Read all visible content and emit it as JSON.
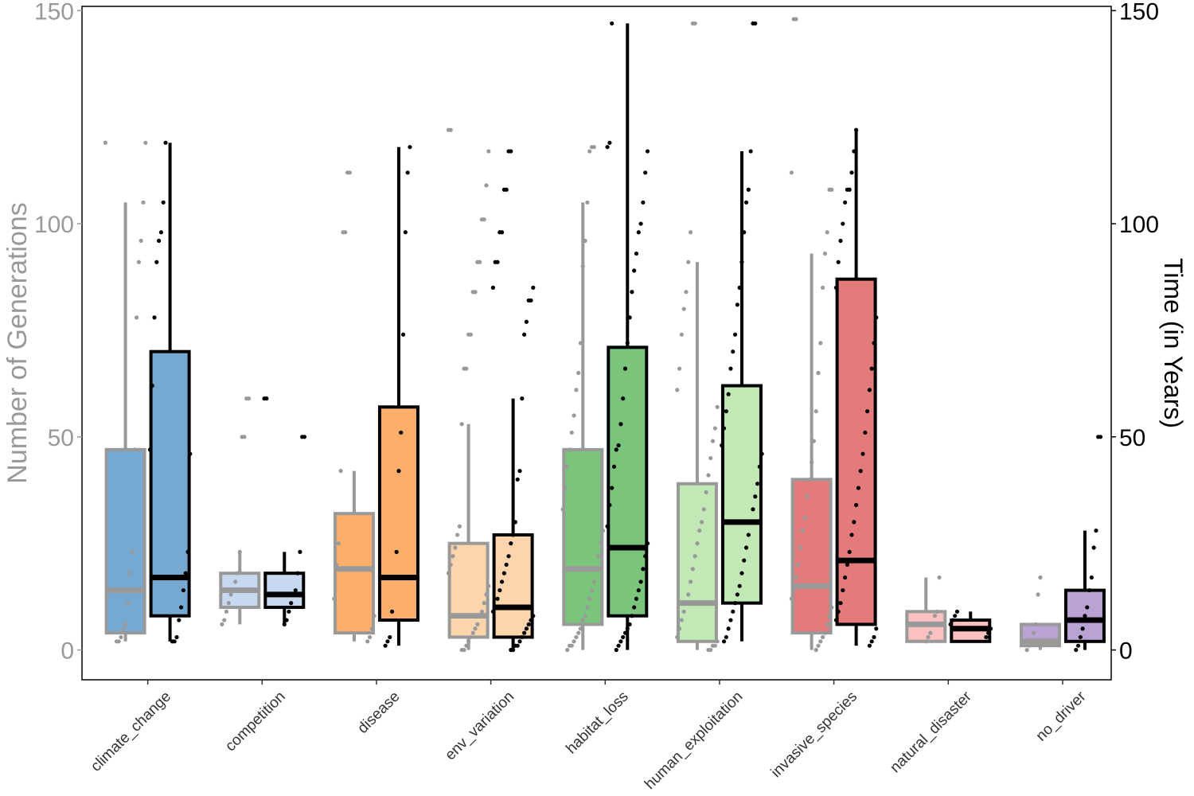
{
  "chart_data": {
    "type": "box",
    "title": "",
    "xlabel": "",
    "ylabel_left": "Number of Generations",
    "ylabel_right": "Time (in Years)",
    "ylim": [
      -7,
      151
    ],
    "yticks": [
      "0",
      "50",
      "100",
      "150"
    ],
    "ytick_values": [
      0,
      50,
      100,
      150
    ],
    "grid": false,
    "colors": {
      "generations_outline": "#999999",
      "years_outline": "#000000",
      "generations_points": "#999999",
      "years_points": "#000000"
    },
    "categories": [
      "climate_change",
      "competition",
      "disease",
      "env_variation",
      "habitat_loss",
      "human_exploitation",
      "invasive_species",
      "natural_disaster",
      "no_driver"
    ],
    "fills": [
      "#76a9d1",
      "#c6d9f0",
      "#fdae6b",
      "#fdd5ad",
      "#7bc47b",
      "#c2e8b6",
      "#e37b7b",
      "#fbc0c0",
      "#b9a2d4"
    ],
    "series": [
      {
        "key": "generations",
        "axis": "left",
        "boxes": [
          {
            "whislo": 2,
            "q1": 4,
            "med": 14,
            "q3": 47,
            "whishi": 105
          },
          {
            "whislo": 6,
            "q1": 10,
            "med": 14,
            "q3": 18,
            "whishi": 23
          },
          {
            "whislo": 2,
            "q1": 4,
            "med": 19,
            "q3": 32,
            "whishi": 42
          },
          {
            "whislo": 0,
            "q1": 3,
            "med": 8,
            "q3": 25,
            "whishi": 53
          },
          {
            "whislo": 0,
            "q1": 6,
            "med": 19,
            "q3": 47,
            "whishi": 105
          },
          {
            "whislo": 0,
            "q1": 2,
            "med": 11,
            "q3": 39,
            "whishi": 91
          },
          {
            "whislo": 0,
            "q1": 4,
            "med": 15,
            "q3": 40,
            "whishi": 93
          },
          {
            "whislo": 2,
            "q1": 2,
            "med": 6,
            "q3": 9,
            "whishi": 17
          },
          {
            "whislo": 0,
            "q1": 1,
            "med": 2,
            "q3": 6,
            "whishi": 6
          }
        ],
        "points": [
          [
            119,
            119,
            105,
            96,
            91,
            78,
            47,
            23,
            18,
            11,
            6,
            5,
            3,
            2,
            2
          ],
          [
            59,
            59,
            50,
            50,
            23,
            18,
            16,
            14,
            13,
            11,
            9,
            7,
            6
          ],
          [
            112,
            112,
            98,
            98,
            42,
            25,
            20,
            12,
            8,
            5,
            3,
            2
          ],
          [
            122,
            122,
            117,
            109,
            101,
            101,
            91,
            91,
            84,
            84,
            74,
            74,
            66,
            66,
            53,
            29,
            27,
            24,
            22,
            20,
            18,
            15,
            13,
            11,
            9,
            8,
            6,
            5,
            4,
            3,
            2,
            1,
            0,
            0
          ],
          [
            118,
            118,
            117,
            105,
            96,
            90,
            72,
            65,
            61,
            55,
            51,
            47,
            43,
            38,
            33,
            28,
            25,
            22,
            19,
            16,
            14,
            12,
            10,
            8,
            7,
            5,
            4,
            3,
            2,
            1,
            1,
            0
          ],
          [
            147,
            147,
            98,
            91,
            84,
            80,
            74,
            66,
            61,
            57,
            52,
            49,
            45,
            41,
            37,
            33,
            30,
            28,
            25,
            22,
            19,
            16,
            13,
            11,
            9,
            7,
            5,
            3,
            2,
            1,
            1,
            0,
            0
          ],
          [
            148,
            148,
            112,
            108,
            108,
            98,
            93,
            85,
            72,
            65,
            56,
            49,
            44,
            40,
            36,
            31,
            28,
            24,
            20,
            17,
            14,
            12,
            10,
            8,
            6,
            4,
            3,
            2,
            1,
            0
          ],
          [
            17,
            9,
            8,
            6,
            4,
            3,
            2
          ],
          [
            17,
            13,
            6,
            4,
            2,
            1,
            0
          ]
        ]
      },
      {
        "key": "years",
        "axis": "right",
        "boxes": [
          {
            "whislo": 2,
            "q1": 8,
            "med": 17,
            "q3": 70,
            "whishi": 119
          },
          {
            "whislo": 6,
            "q1": 10,
            "med": 13,
            "q3": 18,
            "whishi": 23
          },
          {
            "whislo": 1,
            "q1": 7,
            "med": 17,
            "q3": 57,
            "whishi": 118
          },
          {
            "whislo": 0,
            "q1": 3,
            "med": 10,
            "q3": 27,
            "whishi": 59
          },
          {
            "whislo": 0,
            "q1": 8,
            "med": 24,
            "q3": 71,
            "whishi": 147
          },
          {
            "whislo": 2,
            "q1": 11,
            "med": 30,
            "q3": 62,
            "whishi": 117
          },
          {
            "whislo": 1,
            "q1": 6,
            "med": 21,
            "q3": 87,
            "whishi": 122
          },
          {
            "whislo": 2,
            "q1": 2,
            "med": 5,
            "q3": 7,
            "whishi": 9
          },
          {
            "whislo": 0,
            "q1": 2,
            "med": 7,
            "q3": 14,
            "whishi": 28
          }
        ],
        "points": [
          [
            119,
            105,
            98,
            96,
            91,
            78,
            62,
            47,
            46,
            23,
            18,
            14,
            10,
            7,
            3,
            2,
            2
          ],
          [
            59,
            59,
            50,
            50,
            23,
            18,
            14,
            13,
            11,
            9,
            7,
            6
          ],
          [
            118,
            112,
            98,
            74,
            51,
            42,
            23,
            17,
            9,
            3,
            2,
            1
          ],
          [
            117,
            117,
            108,
            108,
            98,
            98,
            91,
            91,
            85,
            85,
            82,
            82,
            77,
            74,
            59,
            42,
            40,
            30,
            27,
            25,
            22,
            20,
            18,
            16,
            14,
            12,
            10,
            9,
            8,
            7,
            6,
            5,
            4,
            3,
            2,
            1,
            1,
            0,
            0
          ],
          [
            147,
            119,
            118,
            117,
            112,
            105,
            100,
            98,
            93,
            89,
            84,
            78,
            72,
            66,
            59,
            53,
            48,
            47,
            43,
            38,
            34,
            29,
            25,
            22,
            19,
            16,
            14,
            12,
            10,
            8,
            6,
            5,
            4,
            3,
            2,
            1,
            0
          ],
          [
            147,
            147,
            117,
            108,
            105,
            98,
            91,
            85,
            81,
            74,
            70,
            66,
            60,
            56,
            52,
            48,
            46,
            43,
            39,
            36,
            33,
            30,
            27,
            24,
            21,
            18,
            15,
            13,
            11,
            9,
            7,
            5,
            3,
            2
          ],
          [
            122,
            117,
            112,
            108,
            108,
            105,
            100,
            96,
            91,
            85,
            78,
            72,
            66,
            61,
            56,
            51,
            46,
            42,
            38,
            34,
            30,
            27,
            23,
            20,
            17,
            14,
            11,
            9,
            7,
            5,
            3,
            2,
            1
          ],
          [
            9,
            8,
            7,
            6,
            5,
            4,
            3
          ],
          [
            50,
            50,
            28,
            24,
            17,
            14,
            10,
            8,
            5,
            3,
            1,
            0
          ]
        ]
      }
    ]
  }
}
